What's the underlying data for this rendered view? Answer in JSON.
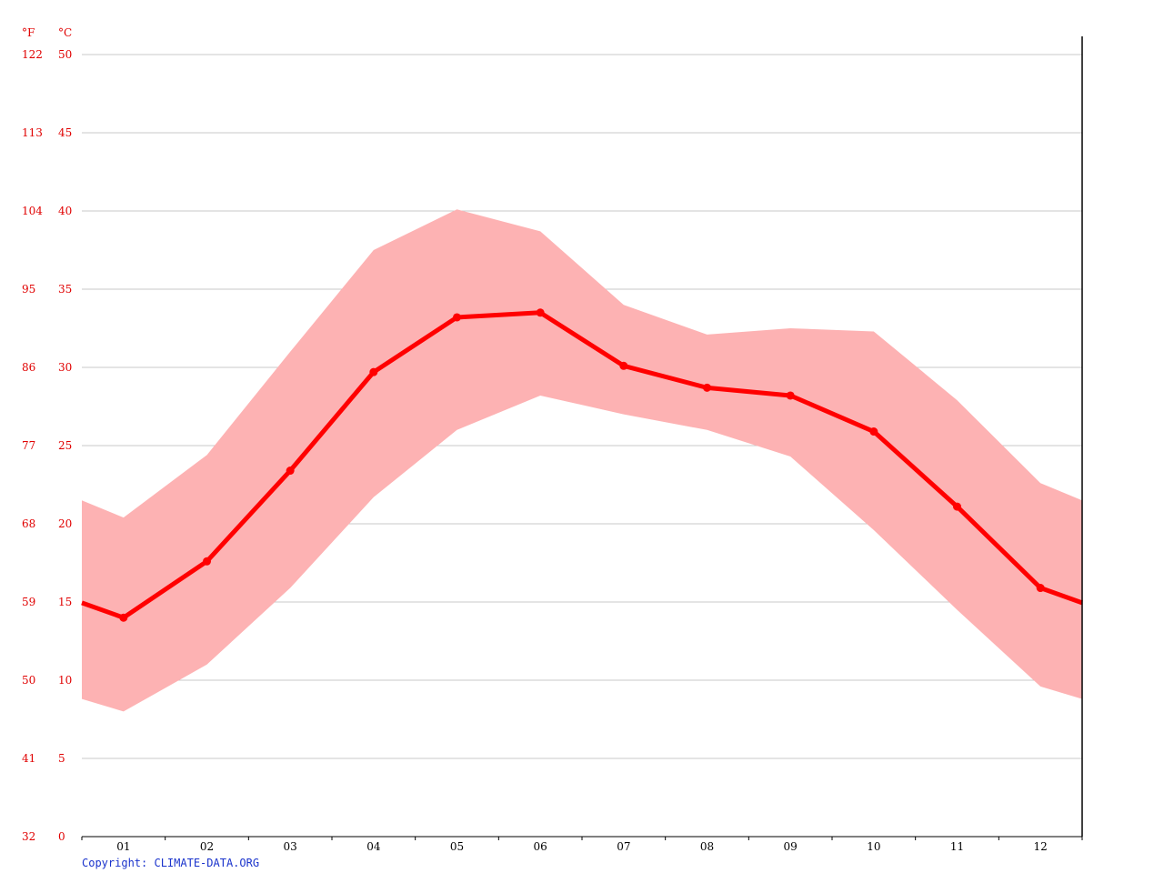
{
  "chart_data": {
    "type": "line",
    "title": "",
    "xlabel": "",
    "ylabel": "",
    "units": {
      "left": "°F",
      "right": "°C"
    },
    "categories": [
      "01",
      "02",
      "03",
      "04",
      "05",
      "06",
      "07",
      "08",
      "09",
      "10",
      "11",
      "12"
    ],
    "ylim": [
      0,
      50
    ],
    "y_ticks_c": [
      "0",
      "5",
      "10",
      "15",
      "20",
      "25",
      "30",
      "35",
      "40",
      "45",
      "50"
    ],
    "y_ticks_f": [
      "32",
      "41",
      "50",
      "59",
      "68",
      "77",
      "86",
      "95",
      "104",
      "113",
      "122"
    ],
    "grid": true,
    "series": [
      {
        "values": [
          14.0,
          17.6,
          23.4,
          29.7,
          33.2,
          33.5,
          30.1,
          28.7,
          28.2,
          25.9,
          21.1,
          15.9
        ]
      },
      {
        "values": [
          20.4,
          24.4,
          31.0,
          37.5,
          40.1,
          38.7,
          34.0,
          32.1,
          32.5,
          32.3,
          27.9,
          22.6
        ]
      },
      {
        "values": [
          8.0,
          11.0,
          15.9,
          21.7,
          26.0,
          28.2,
          27.0,
          26.0,
          24.3,
          19.6,
          14.5,
          9.6
        ]
      }
    ],
    "colors": {
      "line": "#ff0000",
      "band": "#fdb2b3",
      "grid": "#c8c8c8",
      "axis": "#000000",
      "ticks": "#e00000"
    }
  },
  "footer": {
    "copyright": "Copyright: CLIMATE-DATA.ORG"
  }
}
